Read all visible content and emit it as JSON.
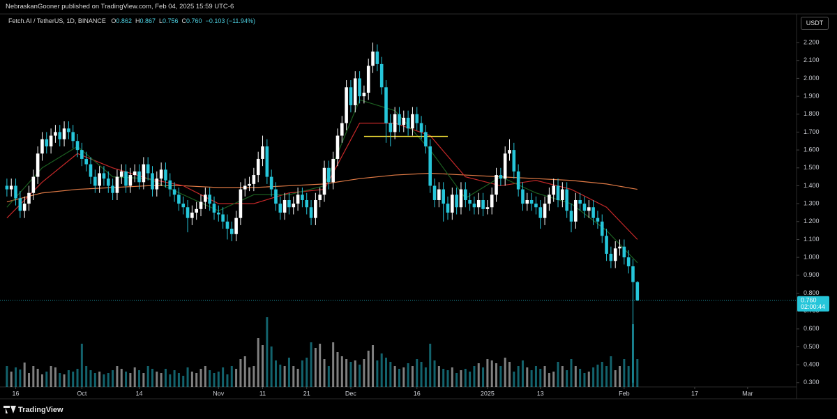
{
  "header": {
    "published": "NebraskanGooner published on TradingView.com, Feb 04, 2025 15:59 UTC-6",
    "currency": "USDT",
    "brand": "TradingView"
  },
  "chart_data": {
    "type": "candlestick",
    "symbol": "Fetch.AI / TetherUS, 1D, BINANCE",
    "ohlc": [
      {
        "key": "O",
        "value": "0.862"
      },
      {
        "key": "H",
        "value": "0.867"
      },
      {
        "key": "L",
        "value": "0.756"
      },
      {
        "key": "C",
        "value": "0.760"
      }
    ],
    "change": "−0.103 (−11.94%)",
    "up_color": "#ffffff",
    "down_color": "#26c6da",
    "xlim": [
      -0.3,
      179.1
    ],
    "ylim": [
      0.276,
      2.36
    ],
    "grid": false,
    "yticks": [
      {
        "value": 0.3,
        "label": "0.300"
      },
      {
        "value": 0.4,
        "label": "0.400"
      },
      {
        "value": 0.5,
        "label": "0.500"
      },
      {
        "value": 0.6,
        "label": "0.600"
      },
      {
        "value": 0.7,
        "label": "0.700"
      },
      {
        "value": 0.8,
        "label": "0.800"
      },
      {
        "value": 0.9,
        "label": "0.900"
      },
      {
        "value": 1.0,
        "label": "1.000"
      },
      {
        "value": 1.1,
        "label": "1.100"
      },
      {
        "value": 1.2,
        "label": "1.200"
      },
      {
        "value": 1.3,
        "label": "1.300"
      },
      {
        "value": 1.4,
        "label": "1.400"
      },
      {
        "value": 1.5,
        "label": "1.500"
      },
      {
        "value": 1.6,
        "label": "1.600"
      },
      {
        "value": 1.7,
        "label": "1.700"
      },
      {
        "value": 1.8,
        "label": "1.800"
      },
      {
        "value": 1.9,
        "label": "1.900"
      },
      {
        "value": 2.0,
        "label": "2.000"
      },
      {
        "value": 2.1,
        "label": "2.100"
      },
      {
        "value": 2.2,
        "label": "2.200"
      }
    ],
    "xticks": [
      {
        "value": 2,
        "label": "16"
      },
      {
        "value": 17,
        "label": "Oct"
      },
      {
        "value": 30,
        "label": "14"
      },
      {
        "value": 48,
        "label": "Nov"
      },
      {
        "value": 58,
        "label": "11"
      },
      {
        "value": 68,
        "label": "21"
      },
      {
        "value": 78,
        "label": "Dec"
      },
      {
        "value": 93,
        "label": "16"
      },
      {
        "value": 109,
        "label": "2025"
      },
      {
        "value": 121,
        "label": "13"
      },
      {
        "value": 140,
        "label": "Feb"
      },
      {
        "value": 156,
        "label": "17"
      },
      {
        "value": 168,
        "label": "Mar"
      }
    ],
    "candles": [
      [
        1.4,
        1.44,
        1.34,
        1.38
      ],
      [
        1.38,
        1.44,
        1.34,
        1.4
      ],
      [
        1.4,
        1.44,
        1.29,
        1.33
      ],
      [
        1.33,
        1.37,
        1.22,
        1.26
      ],
      [
        1.26,
        1.34,
        1.22,
        1.3
      ],
      [
        1.3,
        1.4,
        1.26,
        1.36
      ],
      [
        1.36,
        1.49,
        1.32,
        1.45
      ],
      [
        1.45,
        1.62,
        1.41,
        1.58
      ],
      [
        1.58,
        1.7,
        1.54,
        1.66
      ],
      [
        1.66,
        1.7,
        1.58,
        1.62
      ],
      [
        1.62,
        1.72,
        1.58,
        1.68
      ],
      [
        1.68,
        1.74,
        1.64,
        1.7
      ],
      [
        1.7,
        1.74,
        1.62,
        1.66
      ],
      [
        1.66,
        1.76,
        1.62,
        1.72
      ],
      [
        1.72,
        1.76,
        1.66,
        1.7
      ],
      [
        1.7,
        1.74,
        1.61,
        1.65
      ],
      [
        1.65,
        1.69,
        1.56,
        1.6
      ],
      [
        1.6,
        1.64,
        1.51,
        1.55
      ],
      [
        1.55,
        1.59,
        1.48,
        1.52
      ],
      [
        1.52,
        1.56,
        1.41,
        1.45
      ],
      [
        1.45,
        1.49,
        1.36,
        1.4
      ],
      [
        1.4,
        1.51,
        1.36,
        1.47
      ],
      [
        1.47,
        1.51,
        1.4,
        1.44
      ],
      [
        1.44,
        1.48,
        1.36,
        1.4
      ],
      [
        1.4,
        1.44,
        1.32,
        1.36
      ],
      [
        1.36,
        1.49,
        1.32,
        1.45
      ],
      [
        1.45,
        1.52,
        1.41,
        1.48
      ],
      [
        1.48,
        1.52,
        1.36,
        1.4
      ],
      [
        1.4,
        1.5,
        1.36,
        1.46
      ],
      [
        1.46,
        1.52,
        1.42,
        1.48
      ],
      [
        1.48,
        1.52,
        1.38,
        1.42
      ],
      [
        1.42,
        1.56,
        1.38,
        1.52
      ],
      [
        1.52,
        1.56,
        1.43,
        1.47
      ],
      [
        1.47,
        1.51,
        1.34,
        1.38
      ],
      [
        1.38,
        1.48,
        1.34,
        1.44
      ],
      [
        1.44,
        1.53,
        1.4,
        1.49
      ],
      [
        1.49,
        1.53,
        1.39,
        1.43
      ],
      [
        1.43,
        1.47,
        1.34,
        1.38
      ],
      [
        1.38,
        1.42,
        1.31,
        1.35
      ],
      [
        1.35,
        1.39,
        1.26,
        1.3
      ],
      [
        1.3,
        1.34,
        1.24,
        1.28
      ],
      [
        1.28,
        1.32,
        1.14,
        1.22
      ],
      [
        1.22,
        1.29,
        1.18,
        1.25
      ],
      [
        1.25,
        1.31,
        1.21,
        1.27
      ],
      [
        1.27,
        1.35,
        1.23,
        1.31
      ],
      [
        1.31,
        1.39,
        1.27,
        1.35
      ],
      [
        1.35,
        1.39,
        1.26,
        1.3
      ],
      [
        1.3,
        1.34,
        1.21,
        1.25
      ],
      [
        1.25,
        1.29,
        1.2,
        1.24
      ],
      [
        1.24,
        1.28,
        1.16,
        1.2
      ],
      [
        1.2,
        1.24,
        1.1,
        1.16
      ],
      [
        1.16,
        1.2,
        1.09,
        1.13
      ],
      [
        1.13,
        1.26,
        1.09,
        1.22
      ],
      [
        1.22,
        1.42,
        1.18,
        1.38
      ],
      [
        1.38,
        1.44,
        1.34,
        1.4
      ],
      [
        1.4,
        1.45,
        1.37,
        1.41
      ],
      [
        1.41,
        1.5,
        1.37,
        1.46
      ],
      [
        1.46,
        1.59,
        1.42,
        1.55
      ],
      [
        1.55,
        1.68,
        1.51,
        1.62
      ],
      [
        1.62,
        1.66,
        1.41,
        1.45
      ],
      [
        1.45,
        1.49,
        1.34,
        1.38
      ],
      [
        1.38,
        1.42,
        1.26,
        1.3
      ],
      [
        1.3,
        1.34,
        1.21,
        1.25
      ],
      [
        1.25,
        1.36,
        1.21,
        1.32
      ],
      [
        1.32,
        1.36,
        1.24,
        1.28
      ],
      [
        1.28,
        1.34,
        1.24,
        1.3
      ],
      [
        1.3,
        1.39,
        1.26,
        1.35
      ],
      [
        1.35,
        1.39,
        1.28,
        1.32
      ],
      [
        1.32,
        1.36,
        1.24,
        1.28
      ],
      [
        1.28,
        1.32,
        1.18,
        1.22
      ],
      [
        1.22,
        1.36,
        1.18,
        1.32
      ],
      [
        1.32,
        1.39,
        1.28,
        1.35
      ],
      [
        1.35,
        1.54,
        1.31,
        1.5
      ],
      [
        1.5,
        1.54,
        1.38,
        1.42
      ],
      [
        1.42,
        1.59,
        1.38,
        1.55
      ],
      [
        1.55,
        1.72,
        1.51,
        1.68
      ],
      [
        1.68,
        1.79,
        1.64,
        1.75
      ],
      [
        1.75,
        1.99,
        1.71,
        1.95
      ],
      [
        1.95,
        1.99,
        1.81,
        1.85
      ],
      [
        1.85,
        2.04,
        1.81,
        2.0
      ],
      [
        2.0,
        2.04,
        1.86,
        1.9
      ],
      [
        1.9,
        1.96,
        1.86,
        1.92
      ],
      [
        1.92,
        2.11,
        1.88,
        2.07
      ],
      [
        2.07,
        2.2,
        2.03,
        2.15
      ],
      [
        2.15,
        2.19,
        2.04,
        2.08
      ],
      [
        2.08,
        2.12,
        1.91,
        1.95
      ],
      [
        1.95,
        1.99,
        1.64,
        1.75
      ],
      [
        1.75,
        1.8,
        1.62,
        1.7
      ],
      [
        1.7,
        1.84,
        1.66,
        1.8
      ],
      [
        1.8,
        1.84,
        1.7,
        1.74
      ],
      [
        1.74,
        1.82,
        1.7,
        1.78
      ],
      [
        1.78,
        1.82,
        1.68,
        1.72
      ],
      [
        1.72,
        1.84,
        1.68,
        1.8
      ],
      [
        1.8,
        1.84,
        1.71,
        1.75
      ],
      [
        1.75,
        1.79,
        1.66,
        1.7
      ],
      [
        1.7,
        1.74,
        1.58,
        1.62
      ],
      [
        1.62,
        1.66,
        1.36,
        1.4
      ],
      [
        1.4,
        1.44,
        1.28,
        1.32
      ],
      [
        1.32,
        1.42,
        1.28,
        1.38
      ],
      [
        1.38,
        1.42,
        1.2,
        1.3
      ],
      [
        1.3,
        1.34,
        1.21,
        1.25
      ],
      [
        1.25,
        1.39,
        1.21,
        1.35
      ],
      [
        1.35,
        1.39,
        1.24,
        1.28
      ],
      [
        1.28,
        1.42,
        1.24,
        1.38
      ],
      [
        1.38,
        1.42,
        1.28,
        1.32
      ],
      [
        1.32,
        1.36,
        1.26,
        1.3
      ],
      [
        1.3,
        1.34,
        1.24,
        1.28
      ],
      [
        1.28,
        1.36,
        1.24,
        1.32
      ],
      [
        1.32,
        1.36,
        1.23,
        1.27
      ],
      [
        1.27,
        1.32,
        1.24,
        1.28
      ],
      [
        1.28,
        1.39,
        1.24,
        1.35
      ],
      [
        1.35,
        1.5,
        1.31,
        1.46
      ],
      [
        1.46,
        1.5,
        1.4,
        1.44
      ],
      [
        1.44,
        1.62,
        1.4,
        1.58
      ],
      [
        1.58,
        1.66,
        1.54,
        1.6
      ],
      [
        1.6,
        1.64,
        1.44,
        1.48
      ],
      [
        1.48,
        1.52,
        1.34,
        1.38
      ],
      [
        1.38,
        1.42,
        1.26,
        1.3
      ],
      [
        1.3,
        1.36,
        1.26,
        1.32
      ],
      [
        1.32,
        1.36,
        1.26,
        1.3
      ],
      [
        1.3,
        1.34,
        1.24,
        1.28
      ],
      [
        1.28,
        1.32,
        1.16,
        1.22
      ],
      [
        1.22,
        1.34,
        1.18,
        1.3
      ],
      [
        1.3,
        1.39,
        1.26,
        1.35
      ],
      [
        1.35,
        1.44,
        1.31,
        1.4
      ],
      [
        1.4,
        1.44,
        1.28,
        1.32
      ],
      [
        1.32,
        1.42,
        1.28,
        1.38
      ],
      [
        1.38,
        1.42,
        1.22,
        1.26
      ],
      [
        1.26,
        1.3,
        1.14,
        1.2
      ],
      [
        1.2,
        1.36,
        1.16,
        1.32
      ],
      [
        1.32,
        1.36,
        1.26,
        1.3
      ],
      [
        1.3,
        1.34,
        1.22,
        1.26
      ],
      [
        1.26,
        1.32,
        1.22,
        1.28
      ],
      [
        1.28,
        1.32,
        1.18,
        1.22
      ],
      [
        1.22,
        1.26,
        1.16,
        1.2
      ],
      [
        1.2,
        1.24,
        1.08,
        1.12
      ],
      [
        1.12,
        1.16,
        0.98,
        1.02
      ],
      [
        1.02,
        1.06,
        0.94,
        0.98
      ],
      [
        0.98,
        1.09,
        0.94,
        1.05
      ],
      [
        1.05,
        1.1,
        1.01,
        1.06
      ],
      [
        1.06,
        1.1,
        0.96,
        1.0
      ],
      [
        1.0,
        1.04,
        0.91,
        0.95
      ],
      [
        0.95,
        0.99,
        0.3,
        0.862
      ],
      [
        0.862,
        0.867,
        0.756,
        0.76
      ]
    ],
    "volume": [
      30,
      22,
      28,
      25,
      35,
      20,
      30,
      26,
      18,
      22,
      30,
      28,
      20,
      18,
      24,
      22,
      26,
      62,
      30,
      24,
      20,
      22,
      18,
      20,
      24,
      30,
      26,
      22,
      20,
      28,
      24,
      20,
      30,
      26,
      22,
      20,
      26,
      18,
      24,
      20,
      16,
      28,
      22,
      20,
      26,
      30,
      24,
      20,
      22,
      28,
      18,
      30,
      26,
      40,
      44,
      28,
      30,
      70,
      60,
      100,
      58,
      38,
      32,
      30,
      42,
      30,
      26,
      38,
      42,
      64,
      56,
      62,
      40,
      30,
      64,
      50,
      44,
      40,
      36,
      38,
      32,
      40,
      52,
      60,
      38,
      48,
      42,
      36,
      30,
      26,
      28,
      34,
      30,
      40,
      36,
      28,
      62,
      38,
      30,
      26,
      24,
      28,
      20,
      24,
      26,
      22,
      30,
      34,
      28,
      40,
      38,
      34,
      30,
      42,
      36,
      22,
      30,
      38,
      28,
      24,
      30,
      26,
      30,
      20,
      22,
      36,
      30,
      24,
      40,
      30,
      26,
      20,
      22,
      28,
      32,
      36,
      30,
      44,
      24,
      30,
      40,
      30,
      90,
      40
    ],
    "moving_averages": [
      {
        "color": "#e07a45",
        "x": [
          0,
          8,
          16,
          24,
          32,
          40,
          48,
          56,
          64,
          72,
          80,
          88,
          96,
          104,
          112,
          120,
          128,
          136,
          143
        ],
        "values": [
          1.31,
          1.36,
          1.38,
          1.39,
          1.4,
          1.4,
          1.39,
          1.39,
          1.4,
          1.41,
          1.44,
          1.46,
          1.47,
          1.46,
          1.45,
          1.44,
          1.43,
          1.41,
          1.38
        ]
      },
      {
        "color": "#c62828",
        "x": [
          0,
          8,
          16,
          24,
          32,
          40,
          48,
          56,
          64,
          72,
          80,
          88,
          96,
          104,
          112,
          120,
          128,
          136,
          143
        ],
        "values": [
          1.22,
          1.42,
          1.58,
          1.5,
          1.44,
          1.4,
          1.3,
          1.3,
          1.36,
          1.38,
          1.75,
          1.75,
          1.68,
          1.45,
          1.4,
          1.43,
          1.38,
          1.28,
          1.1
        ]
      },
      {
        "color": "#1b5e20",
        "x": [
          0,
          8,
          16,
          24,
          32,
          40,
          48,
          56,
          64,
          72,
          80,
          88,
          96,
          104,
          112,
          120,
          128,
          136,
          143
        ],
        "values": [
          1.28,
          1.5,
          1.62,
          1.45,
          1.44,
          1.35,
          1.26,
          1.35,
          1.35,
          1.4,
          1.88,
          1.82,
          1.6,
          1.33,
          1.45,
          1.36,
          1.3,
          1.15,
          0.97
        ]
      }
    ],
    "levels": [
      {
        "value": 1.676,
        "x": [
          81,
          100
        ],
        "color": "#ffeb3b"
      }
    ],
    "last_price": {
      "value": 0.76,
      "label": "0.760",
      "countdown": "02:00:44"
    }
  }
}
